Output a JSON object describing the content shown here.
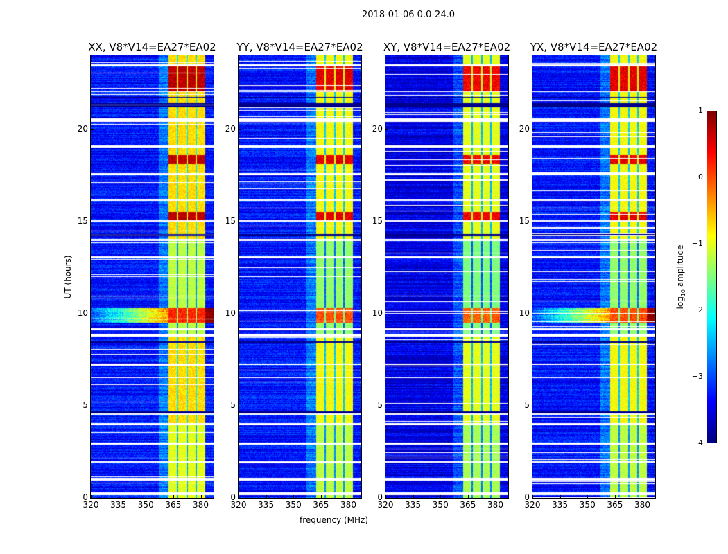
{
  "suptitle": "2018-01-06 0.0-24.0",
  "chart_data": {
    "type": "heatmap",
    "title": "2018-01-06 0.0-24.0",
    "xlabel": "frequency (MHz)",
    "ylabel": "UT (hours)",
    "xlim": [
      320,
      387
    ],
    "ylim": [
      0,
      24
    ],
    "xticks": [
      "320",
      "335",
      "350",
      "365",
      "380"
    ],
    "xtick_values": [
      320,
      335,
      350,
      365,
      380
    ],
    "yticks": [
      "0",
      "5",
      "10",
      "15",
      "20"
    ],
    "ytick_values": [
      0,
      5,
      10,
      15,
      20
    ],
    "panels": [
      {
        "title": "XX, V8*V14=EA27*EA02",
        "band_level": -0.7
      },
      {
        "title": "YY, V8*V14=EA27*EA02",
        "band_level": -0.9
      },
      {
        "title": "XY, V8*V14=EA27*EA02",
        "band_level": -1.0
      },
      {
        "title": "YX, V8*V14=EA27*EA02",
        "band_level": -0.9
      }
    ],
    "rfi_band_mhz": [
      362.3,
      382.6
    ],
    "band_divisions_mhz": [
      367.2,
      372.5,
      377.7
    ],
    "flagged_hours": [
      [
        0.15,
        0.3
      ],
      [
        0.95,
        1.1
      ],
      [
        1.9,
        2.0
      ],
      [
        2.9,
        3.0
      ],
      [
        3.95,
        4.05
      ],
      [
        4.5,
        4.6
      ],
      [
        6.5,
        6.55
      ],
      [
        7.2,
        7.3
      ],
      [
        8.75,
        8.9
      ],
      [
        9.1,
        9.2
      ],
      [
        13.0,
        13.1
      ],
      [
        13.95,
        14.05
      ],
      [
        15.0,
        15.05
      ],
      [
        16.1,
        16.2
      ],
      [
        17.5,
        17.6
      ],
      [
        19.0,
        19.1
      ],
      [
        20.4,
        20.6
      ],
      [
        22.0,
        22.05
      ],
      [
        23.4,
        23.5
      ]
    ],
    "dark_hours": [
      [
        21.2,
        21.4
      ],
      [
        21.7,
        21.75
      ],
      [
        4.6,
        4.7
      ],
      [
        8.4,
        8.5
      ],
      [
        14.2,
        14.3
      ]
    ],
    "high_rfi_hours": [
      [
        9.5,
        10.3
      ],
      [
        18.1,
        18.6
      ],
      [
        22.0,
        23.4
      ],
      [
        15.0,
        15.5
      ]
    ],
    "colorbar": {
      "label": "log10 amplitude",
      "label_main": "log",
      "label_sub": "10",
      "label_rest": " amplitude",
      "range": [
        -4,
        1
      ],
      "ticks": [
        "1",
        "0",
        "−1",
        "−2",
        "−3",
        "−4"
      ],
      "tick_values": [
        1,
        0,
        -1,
        -2,
        -3,
        -4
      ],
      "colormap": "jet"
    }
  }
}
